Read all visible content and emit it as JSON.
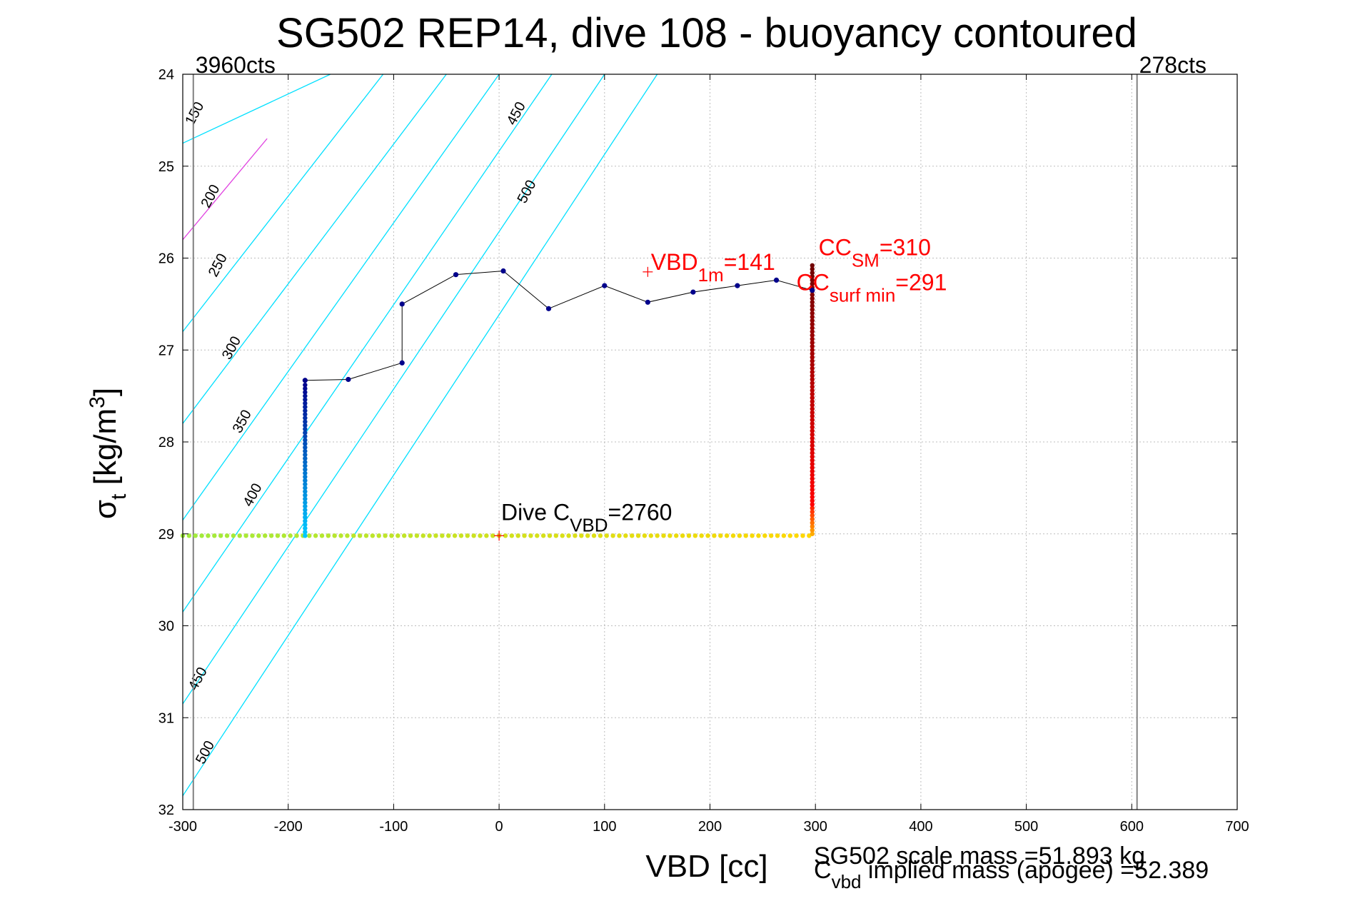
{
  "chart_data": {
    "type": "scatter",
    "title": "SG502 REP14, dive 108 - buoyancy contoured",
    "xlabel": "VBD [cc]",
    "ylabel": "σt [kg/m3]",
    "xlim": [
      -300,
      700
    ],
    "ylim": [
      32,
      24
    ],
    "y_reversed": true,
    "grid": true,
    "xticks": [
      -300,
      -200,
      -100,
      0,
      100,
      200,
      300,
      400,
      500,
      600,
      700
    ],
    "yticks": [
      24,
      25,
      26,
      27,
      28,
      29,
      30,
      31,
      32
    ],
    "limit_lines": [
      {
        "x": -290,
        "label": "3960cts"
      },
      {
        "x": 605,
        "label": "278cts"
      }
    ],
    "contours": [
      {
        "level": "150",
        "color": "#00e0ff",
        "points": [
          [
            -300,
            24.75
          ],
          [
            -160,
            24
          ]
        ]
      },
      {
        "level": "200",
        "color": "#e040e0",
        "points": [
          [
            -300,
            25.8
          ],
          [
            -220,
            24.7
          ]
        ]
      },
      {
        "level": "250",
        "color": "#00e0ff",
        "points": [
          [
            -300,
            26.8
          ],
          [
            -110,
            24
          ]
        ]
      },
      {
        "level": "300",
        "color": "#00e0ff",
        "points": [
          [
            -300,
            27.8
          ],
          [
            -50,
            24
          ]
        ]
      },
      {
        "level": "350",
        "color": "#00e0ff",
        "points": [
          [
            -300,
            28.85
          ],
          [
            0,
            24
          ]
        ]
      },
      {
        "level": "400",
        "color": "#00e0ff",
        "points": [
          [
            -300,
            29.85
          ],
          [
            50,
            24
          ]
        ]
      },
      {
        "level": "450",
        "color": "#00e0ff",
        "points": [
          [
            -300,
            30.85
          ],
          [
            100,
            24
          ]
        ]
      },
      {
        "level": "500",
        "color": "#00e0ff",
        "points": [
          [
            -300,
            31.85
          ],
          [
            150,
            24
          ]
        ]
      }
    ],
    "contour_labels": [
      {
        "text": "150",
        "x": -285,
        "y": 24.45
      },
      {
        "text": "200",
        "x": -270,
        "y": 25.35
      },
      {
        "text": "250",
        "x": -263,
        "y": 26.1
      },
      {
        "text": "300",
        "x": -250,
        "y": 27.0
      },
      {
        "text": "350",
        "x": -240,
        "y": 27.8
      },
      {
        "text": "400",
        "x": -230,
        "y": 28.6
      },
      {
        "text": "450",
        "x": -282,
        "y": 30.6
      },
      {
        "text": "500",
        "x": -275,
        "y": 31.4
      },
      {
        "text": "450",
        "x": 20,
        "y": 24.45
      },
      {
        "text": "500",
        "x": 30,
        "y": 25.3
      }
    ],
    "trace": [
      [
        -184,
        27.33
      ],
      [
        -143,
        27.32
      ],
      [
        -92,
        27.14
      ],
      [
        -92,
        26.5
      ],
      [
        -41,
        26.18
      ],
      [
        4,
        26.14
      ],
      [
        47,
        26.55
      ],
      [
        100,
        26.3
      ],
      [
        141,
        26.48
      ],
      [
        184,
        26.37
      ],
      [
        226,
        26.3
      ],
      [
        263,
        26.24
      ],
      [
        297,
        26.35
      ]
    ],
    "descent_column": {
      "x": -184,
      "y_from": 27.35,
      "y_to": 29.02
    },
    "bottom_row": {
      "x_from": -300,
      "x_to": 297,
      "y": 29.02
    },
    "ascent_column": {
      "x": 297,
      "y_from": 29.0,
      "y_to": 26.05
    },
    "markers": [
      {
        "label": "VBD1m",
        "x": 141,
        "y": 26.15
      },
      {
        "label": "Dive CVBD",
        "x": 0,
        "y": 29.02
      }
    ],
    "annotations": {
      "vbd1m": {
        "base": "VBD",
        "sub": "1m",
        "rest": "=141"
      },
      "ccsm": {
        "base": "CC",
        "sub": "SM",
        "rest": "=310"
      },
      "ccsurf": {
        "base": "CC",
        "sub": "surf min",
        "rest": "=291"
      },
      "dive_cvbd": {
        "base": "Dive C",
        "sub": "VBD",
        "rest": "=2760"
      }
    },
    "footer": {
      "scale_mass": "SG502 scale mass =51.893 kg",
      "implied_base": "C",
      "implied_sub": "vbd",
      "implied_rest": " implied mass (apogee) =52.389"
    }
  },
  "colors": {
    "annotation": "#ff0000",
    "trace_line": "#000000",
    "dot_blue": "#00008b",
    "limit_line": "#808080"
  }
}
